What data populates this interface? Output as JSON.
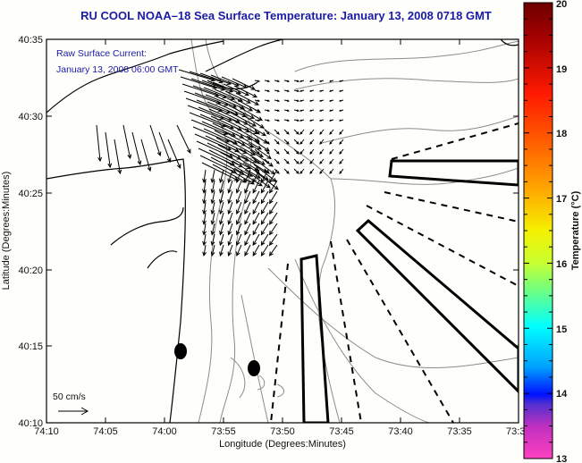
{
  "title": "RU COOL  NOAA–18  Sea Surface Temperature:  January 13, 2008 0718 GMT",
  "annotation": {
    "line1": "Raw Surface Current:",
    "line2": "January 13, 2008 06:00 GMT"
  },
  "scale_label": "50 cm/s",
  "axes": {
    "xlabel": "Longitude (Degrees:Minutes)",
    "ylabel": "Latitude (Degrees:Minutes)",
    "xticks": [
      "74:10",
      "74:05",
      "74:00",
      "73:55",
      "73:50",
      "73:45",
      "73:40",
      "73:35",
      "73:3"
    ],
    "yticks": [
      "40:35",
      "40:30",
      "40:25",
      "40:20",
      "40:15",
      "40:10"
    ]
  },
  "colorbar": {
    "label": "Temperature (°C)",
    "ticks": [
      "20",
      "19",
      "18",
      "17",
      "16",
      "15",
      "14",
      "13"
    ],
    "min": 13,
    "max": 20
  },
  "colors": {
    "title": "#1a1aa6",
    "coast": "#000000",
    "isobath": "#8c8c8c",
    "background": "#fefefb"
  }
}
